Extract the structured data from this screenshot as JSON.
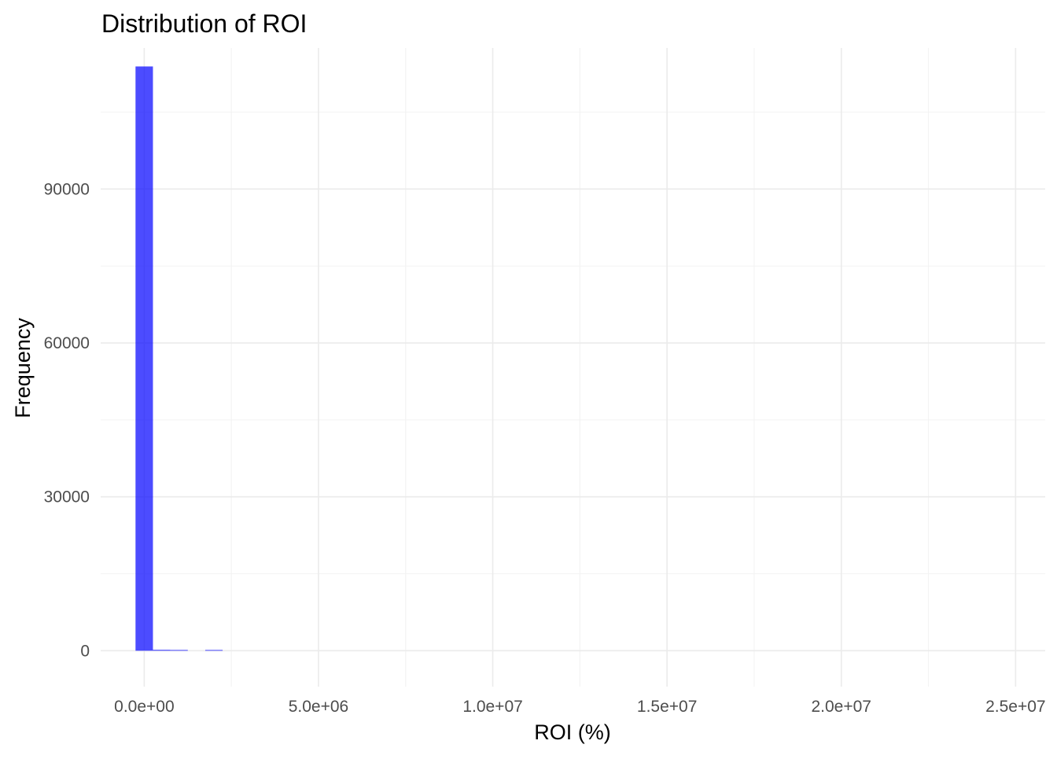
{
  "chart_data": {
    "type": "bar",
    "subtype": "histogram",
    "title": "Distribution of ROI",
    "xlabel": "ROI (%)",
    "ylabel": "Frequency",
    "xlim": [
      -1250000,
      25850000
    ],
    "ylim": [
      -7000,
      117500
    ],
    "x_ticks": [
      0,
      5000000,
      10000000,
      15000000,
      20000000,
      25000000
    ],
    "x_tick_labels": [
      "0.0e+00",
      "5.0e+06",
      "1.0e+07",
      "1.5e+07",
      "2.0e+07",
      "2.5e+07"
    ],
    "y_ticks": [
      0,
      30000,
      60000,
      90000
    ],
    "y_tick_labels": [
      "0",
      "30000",
      "60000",
      "90000"
    ],
    "bin_width": 500000,
    "bins": [
      {
        "x_start": -250000,
        "x_end": 250000,
        "count": 113900
      },
      {
        "x_start": 250000,
        "x_end": 750000,
        "count": 180
      },
      {
        "x_start": 750000,
        "x_end": 1250000,
        "count": 100
      },
      {
        "x_start": 1750000,
        "x_end": 2250000,
        "count": 60
      }
    ],
    "bar_color": "#0000ff",
    "bar_opacity": 0.7,
    "grid": true,
    "legend": "none"
  }
}
